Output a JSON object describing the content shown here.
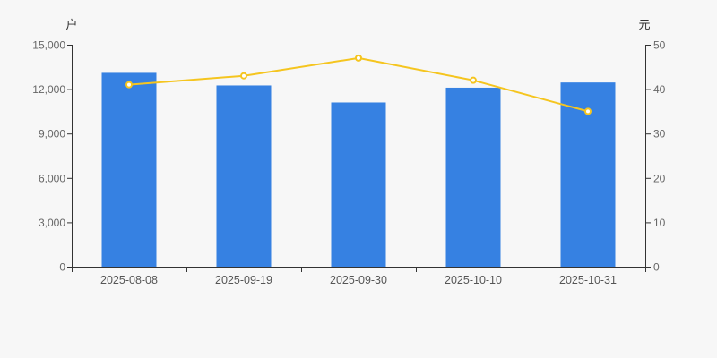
{
  "background": "#f7f7f7",
  "chart_data": {
    "type": "bar",
    "title": "",
    "categories": [
      "2025-08-08",
      "2025-09-19",
      "2025-09-30",
      "2025-10-10",
      "2025-10-31"
    ],
    "series": [
      {
        "type": "bar",
        "axis": "left",
        "color": "#3681e2",
        "values": [
          13100,
          12250,
          11100,
          12100,
          12450
        ]
      },
      {
        "type": "line",
        "axis": "right",
        "color": "#f5c51f",
        "marker_fill": "#ffffff",
        "values": [
          41,
          43,
          47,
          42,
          35
        ]
      }
    ],
    "left_axis": {
      "name": "户",
      "min": 0,
      "max": 15000,
      "tick_interval": 3000,
      "tick_labels": [
        "0",
        "3,000",
        "6,000",
        "9,000",
        "12,000",
        "15,000"
      ]
    },
    "right_axis": {
      "name": "元",
      "min": 0,
      "max": 50,
      "tick_interval": 10,
      "tick_labels": [
        "0",
        "10",
        "20",
        "30",
        "40",
        "50"
      ]
    },
    "grid": false,
    "legend": false,
    "colors": {
      "axis_line": "#333333",
      "tick_label": "#666666",
      "category_label": "#555555",
      "axis_name": "#333333"
    }
  }
}
